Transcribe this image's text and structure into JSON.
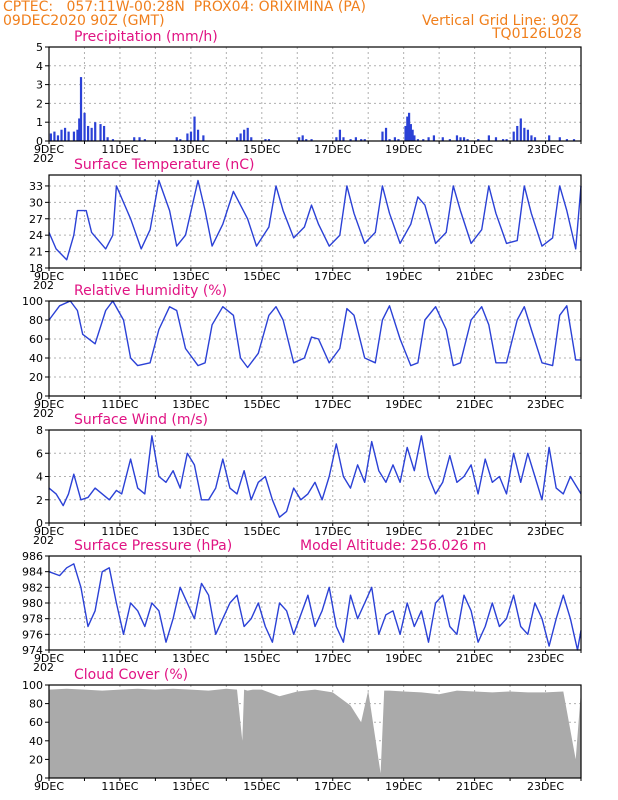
{
  "header": {
    "line1": "CPTEC:   057:11W-00:28N  PROX04: ORIXIMINA (PA)",
    "line2": "09DEC2020 90Z (GMT)",
    "grid_note": "Vertical Grid Line: 90Z",
    "code": "TQ0126L028"
  },
  "colors": {
    "header": "#f07f1c",
    "title": "#e01383",
    "line": "#2b41d6",
    "bar": "#2b41d6",
    "cloud": "#aaaaaa",
    "grid": "#b0b0b0"
  },
  "x_axis": {
    "labels": [
      "9DEC",
      "11DEC",
      "13DEC",
      "15DEC",
      "17DEC",
      "19DEC",
      "21DEC",
      "23DEC"
    ],
    "label_days": [
      0,
      2,
      4,
      6,
      8,
      10,
      12,
      14
    ],
    "span_days": 15,
    "year_stub": "202"
  },
  "chart_data": [
    {
      "type": "bar",
      "title": "Precipitation (mm/h)",
      "ylim": [
        0,
        5
      ],
      "yticks": [
        0,
        1,
        2,
        3,
        4,
        5
      ],
      "x_unit": "days since 9DEC 00Z",
      "x": [
        0.05,
        0.15,
        0.25,
        0.35,
        0.45,
        0.55,
        0.7,
        0.8,
        0.85,
        0.9,
        1.0,
        1.1,
        1.2,
        1.3,
        1.45,
        1.55,
        1.65,
        1.8,
        2.4,
        2.55,
        2.7,
        3.6,
        3.7,
        3.9,
        4.0,
        4.1,
        4.2,
        4.35,
        5.3,
        5.4,
        5.5,
        5.6,
        5.7,
        6.1,
        6.2,
        7.05,
        7.15,
        7.25,
        7.4,
        8.1,
        8.2,
        8.3,
        8.5,
        8.65,
        8.8,
        8.9,
        9.4,
        9.5,
        9.6,
        9.75,
        9.85,
        10.05,
        10.1,
        10.15,
        10.2,
        10.25,
        10.3,
        10.4,
        10.55,
        10.7,
        10.85,
        11.1,
        11.3,
        11.5,
        11.6,
        11.7,
        11.8,
        12.1,
        12.4,
        12.6,
        12.8,
        12.9,
        13.1,
        13.2,
        13.3,
        13.4,
        13.5,
        13.6,
        13.7,
        14.1,
        14.4,
        14.6,
        14.8
      ],
      "values": [
        0.4,
        0.5,
        0.3,
        0.6,
        0.7,
        0.5,
        0.5,
        0.6,
        1.2,
        3.4,
        1.5,
        0.8,
        0.7,
        1.0,
        0.9,
        0.8,
        0.2,
        0.1,
        0.2,
        0.2,
        0.1,
        0.2,
        0.1,
        0.4,
        0.5,
        1.3,
        0.6,
        0.3,
        0.2,
        0.4,
        0.6,
        0.7,
        0.2,
        0.1,
        0.1,
        0.2,
        0.3,
        0.1,
        0.1,
        0.2,
        0.6,
        0.2,
        0.1,
        0.2,
        0.1,
        0.1,
        0.5,
        0.7,
        0.1,
        0.2,
        0.1,
        0.8,
        1.3,
        1.5,
        0.9,
        0.6,
        0.3,
        0.1,
        0.1,
        0.2,
        0.3,
        0.2,
        0.1,
        0.3,
        0.2,
        0.2,
        0.1,
        0.1,
        0.3,
        0.2,
        0.1,
        0.1,
        0.5,
        0.8,
        1.2,
        0.7,
        0.6,
        0.3,
        0.2,
        0.3,
        0.2,
        0.1,
        0.1
      ]
    },
    {
      "type": "line",
      "title": "Surface Temperature (nC)",
      "ylim": [
        18,
        35
      ],
      "yticks": [
        18,
        21,
        24,
        27,
        30,
        33
      ],
      "x_unit": "days since 9DEC 00Z",
      "x": [
        0,
        0.2,
        0.5,
        0.7,
        0.8,
        1.05,
        1.2,
        1.6,
        1.8,
        1.9,
        2.3,
        2.6,
        2.85,
        3.1,
        3.4,
        3.6,
        3.85,
        4.2,
        4.4,
        4.6,
        4.9,
        5.2,
        5.6,
        5.85,
        6.2,
        6.4,
        6.6,
        6.9,
        7.2,
        7.4,
        7.6,
        7.9,
        8.2,
        8.4,
        8.6,
        8.9,
        9.2,
        9.4,
        9.6,
        9.9,
        10.2,
        10.4,
        10.6,
        10.9,
        11.2,
        11.4,
        11.6,
        11.9,
        12.2,
        12.4,
        12.6,
        12.9,
        13.2,
        13.4,
        13.6,
        13.9,
        14.2,
        14.4,
        14.6,
        14.85,
        15
      ],
      "values": [
        24.5,
        21.5,
        19.5,
        24,
        28.5,
        28.5,
        24.5,
        21.5,
        24,
        33,
        27,
        21.5,
        25,
        34,
        28.5,
        22,
        24,
        34,
        28.5,
        22,
        26,
        32,
        27,
        22,
        25.5,
        33,
        28.5,
        23.5,
        25.5,
        29.5,
        26,
        22,
        24,
        33,
        28,
        22.5,
        24.5,
        33,
        28,
        22.5,
        26,
        31,
        29.5,
        22.5,
        24.5,
        33,
        28.5,
        22.5,
        25,
        33,
        28,
        22.5,
        23,
        33,
        28,
        22,
        23.5,
        33,
        28.5,
        21.5,
        33
      ]
    },
    {
      "type": "line",
      "title": "Relative Humidity (%)",
      "ylim": [
        0,
        100
      ],
      "yticks": [
        0,
        20,
        40,
        60,
        80,
        100
      ],
      "x_unit": "days since 9DEC 00Z",
      "x": [
        0,
        0.3,
        0.6,
        0.8,
        0.95,
        1.3,
        1.6,
        1.8,
        2.1,
        2.3,
        2.5,
        2.85,
        3.1,
        3.4,
        3.6,
        3.85,
        4.2,
        4.4,
        4.6,
        4.9,
        5.2,
        5.4,
        5.6,
        5.9,
        6.2,
        6.4,
        6.6,
        6.9,
        7.2,
        7.4,
        7.6,
        7.9,
        8.2,
        8.4,
        8.6,
        8.9,
        9.2,
        9.4,
        9.6,
        9.9,
        10.2,
        10.4,
        10.6,
        10.9,
        11.2,
        11.4,
        11.6,
        11.9,
        12.2,
        12.4,
        12.6,
        12.9,
        13.2,
        13.4,
        13.6,
        13.9,
        14.2,
        14.4,
        14.6,
        14.85,
        15
      ],
      "values": [
        80,
        95,
        100,
        90,
        65,
        55,
        90,
        100,
        80,
        40,
        32,
        35,
        70,
        94,
        90,
        50,
        32,
        35,
        75,
        94,
        85,
        40,
        30,
        45,
        85,
        94,
        80,
        35,
        40,
        62,
        60,
        35,
        50,
        92,
        85,
        40,
        35,
        80,
        95,
        60,
        32,
        35,
        80,
        94,
        70,
        32,
        35,
        80,
        94,
        75,
        35,
        35,
        80,
        94,
        70,
        35,
        32,
        85,
        95,
        38,
        38
      ]
    },
    {
      "type": "line",
      "title": "Surface Wind (m/s)",
      "ylim": [
        0,
        8
      ],
      "yticks": [
        0,
        2,
        4,
        6,
        8
      ],
      "x_unit": "days since 9DEC 00Z",
      "x": [
        0,
        0.2,
        0.4,
        0.55,
        0.7,
        0.9,
        1.1,
        1.3,
        1.5,
        1.7,
        1.9,
        2.05,
        2.3,
        2.5,
        2.7,
        2.9,
        3.1,
        3.3,
        3.5,
        3.7,
        3.9,
        4.1,
        4.3,
        4.5,
        4.7,
        4.9,
        5.1,
        5.3,
        5.5,
        5.7,
        5.9,
        6.1,
        6.3,
        6.5,
        6.7,
        6.9,
        7.1,
        7.3,
        7.5,
        7.7,
        7.9,
        8.1,
        8.3,
        8.5,
        8.7,
        8.9,
        9.1,
        9.3,
        9.5,
        9.7,
        9.9,
        10.1,
        10.3,
        10.5,
        10.7,
        10.9,
        11.1,
        11.3,
        11.5,
        11.7,
        11.9,
        12.1,
        12.3,
        12.5,
        12.7,
        12.9,
        13.1,
        13.3,
        13.5,
        13.7,
        13.9,
        14.1,
        14.3,
        14.5,
        14.7,
        14.9,
        15
      ],
      "values": [
        3,
        2.5,
        1.5,
        2.5,
        4.2,
        2,
        2.2,
        3,
        2.5,
        2,
        2.8,
        2.5,
        5.5,
        3,
        2.5,
        7.5,
        4,
        3.5,
        4.5,
        3,
        6,
        5,
        2,
        2,
        3,
        5.5,
        3,
        2.5,
        4.5,
        2,
        3.5,
        4,
        2,
        0.5,
        1,
        3,
        2,
        2.5,
        3.5,
        2,
        4,
        6.8,
        4,
        3,
        5,
        3.5,
        7,
        4.5,
        3.5,
        5,
        3.5,
        6.5,
        4.5,
        7.5,
        4,
        2.5,
        3.5,
        5.8,
        3.5,
        4,
        5,
        2.5,
        5.5,
        3.5,
        4,
        2.5,
        6,
        3.5,
        6,
        4,
        2,
        6.5,
        3,
        2.5,
        4,
        3,
        2.5
      ]
    },
    {
      "type": "line",
      "title": "Surface Pressure (hPa)",
      "annotation": "Model Altitude: 256.026 m",
      "ylim": [
        974,
        986
      ],
      "yticks": [
        974,
        976,
        978,
        980,
        982,
        984,
        986
      ],
      "x_unit": "days since 9DEC 00Z",
      "x": [
        0,
        0.3,
        0.5,
        0.7,
        0.9,
        1.1,
        1.3,
        1.5,
        1.7,
        1.9,
        2.1,
        2.3,
        2.5,
        2.7,
        2.9,
        3.1,
        3.3,
        3.5,
        3.7,
        3.9,
        4.1,
        4.3,
        4.5,
        4.7,
        4.9,
        5.1,
        5.3,
        5.5,
        5.7,
        5.9,
        6.1,
        6.3,
        6.5,
        6.7,
        6.9,
        7.1,
        7.3,
        7.5,
        7.7,
        7.9,
        8.1,
        8.3,
        8.5,
        8.7,
        8.9,
        9.1,
        9.3,
        9.5,
        9.7,
        9.9,
        10.1,
        10.3,
        10.5,
        10.7,
        10.9,
        11.1,
        11.3,
        11.5,
        11.7,
        11.9,
        12.1,
        12.3,
        12.5,
        12.7,
        12.9,
        13.1,
        13.3,
        13.5,
        13.7,
        13.9,
        14.1,
        14.3,
        14.5,
        14.7,
        14.9,
        15
      ],
      "values": [
        984,
        983.5,
        984.5,
        985,
        982,
        977,
        979,
        984,
        984.5,
        980,
        976,
        980,
        979,
        977,
        980,
        979,
        975,
        978,
        982,
        980,
        978,
        982.5,
        981,
        976,
        978,
        980,
        981,
        977,
        978,
        980,
        977,
        975,
        980,
        979,
        976,
        978.5,
        981,
        977,
        979,
        982,
        977,
        975,
        981,
        978,
        980,
        982,
        976,
        978.5,
        979,
        976,
        980,
        977,
        979,
        975,
        980,
        981,
        977,
        976,
        981,
        979,
        975,
        977,
        980,
        977,
        978,
        981,
        977,
        976,
        980,
        978,
        974.5,
        978,
        981,
        978,
        974,
        976.5
      ]
    },
    {
      "type": "area",
      "title": "Cloud Cover (%)",
      "ylim": [
        0,
        100
      ],
      "yticks": [
        0,
        20,
        40,
        60,
        80,
        100
      ],
      "x_unit": "days since 9DEC 00Z",
      "x": [
        0,
        0.5,
        1.0,
        1.5,
        2.0,
        2.5,
        3.0,
        3.5,
        4.0,
        4.5,
        5.0,
        5.3,
        5.45,
        5.5,
        5.6,
        5.75,
        6.0,
        6.5,
        7.0,
        7.5,
        8.0,
        8.5,
        8.8,
        9.0,
        9.25,
        9.35,
        9.45,
        9.6,
        10.0,
        10.5,
        11.0,
        11.5,
        12.0,
        12.5,
        13.0,
        13.5,
        14.0,
        14.5,
        14.85,
        15
      ],
      "values": [
        95,
        96,
        95,
        94,
        95,
        96,
        95,
        96,
        95,
        94,
        96,
        95,
        40,
        95,
        94,
        95,
        95,
        88,
        93,
        95,
        92,
        78,
        60,
        94,
        30,
        5,
        94,
        94,
        93,
        92,
        90,
        94,
        93,
        92,
        93,
        92,
        92,
        93,
        20,
        94
      ]
    }
  ]
}
